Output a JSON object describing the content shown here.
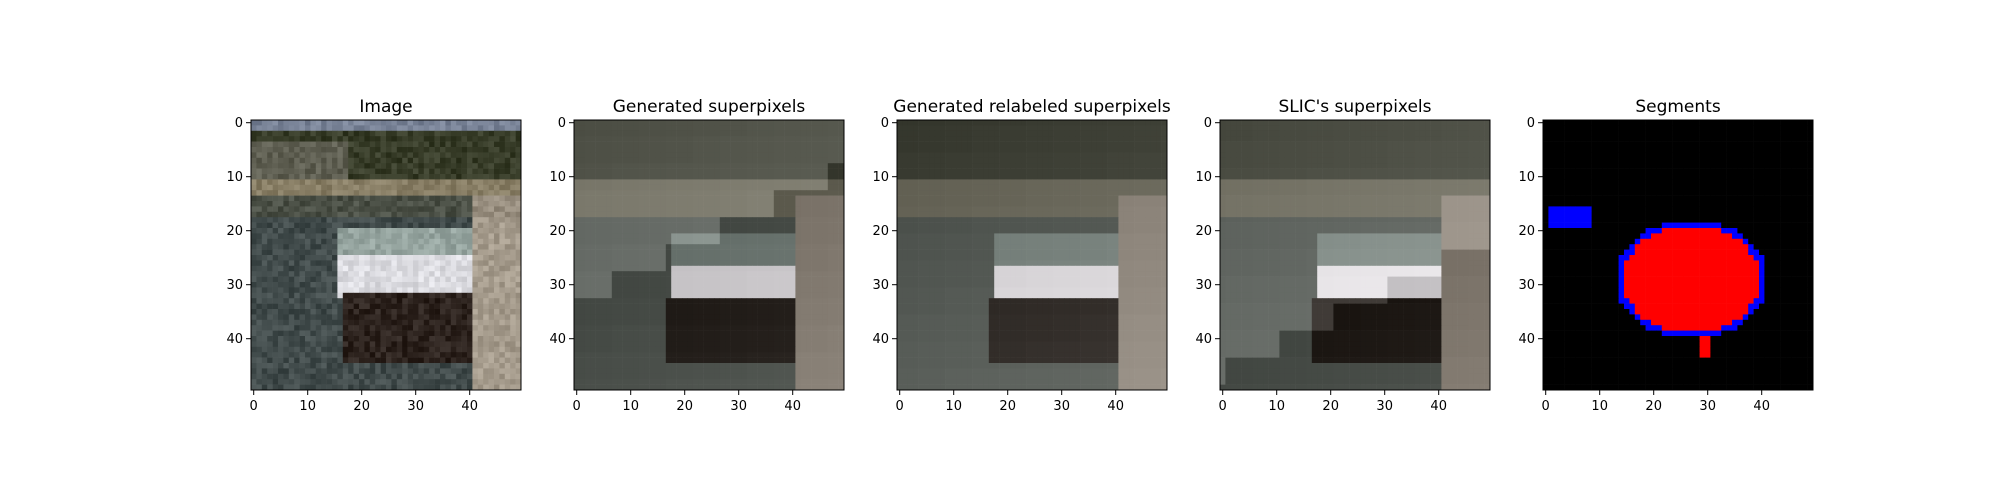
{
  "chart_data": [
    {
      "type": "heatmap",
      "title": "Image",
      "image_size": [
        50,
        50
      ],
      "xticks": [
        0,
        10,
        20,
        30,
        40
      ],
      "yticks": [
        0,
        10,
        20,
        30,
        40
      ],
      "xlim": [
        -0.5,
        49.5
      ],
      "ylim": [
        49.5,
        -0.5
      ]
    },
    {
      "type": "heatmap",
      "title": "Generated superpixels",
      "image_size": [
        50,
        50
      ],
      "xticks": [
        0,
        10,
        20,
        30,
        40
      ],
      "yticks": [
        0,
        10,
        20,
        30,
        40
      ],
      "xlim": [
        -0.5,
        49.5
      ],
      "ylim": [
        49.5,
        -0.5
      ]
    },
    {
      "type": "heatmap",
      "title": "Generated relabeled superpixels",
      "image_size": [
        50,
        50
      ],
      "xticks": [
        0,
        10,
        20,
        30,
        40
      ],
      "yticks": [
        0,
        10,
        20,
        30,
        40
      ],
      "xlim": [
        -0.5,
        49.5
      ],
      "ylim": [
        49.5,
        -0.5
      ]
    },
    {
      "type": "heatmap",
      "title": "SLIC's superpixels",
      "image_size": [
        50,
        50
      ],
      "xticks": [
        0,
        10,
        20,
        30,
        40
      ],
      "yticks": [
        0,
        10,
        20,
        30,
        40
      ],
      "xlim": [
        -0.5,
        49.5
      ],
      "ylim": [
        49.5,
        -0.5
      ]
    },
    {
      "type": "heatmap",
      "title": "Segments",
      "image_size": [
        50,
        50
      ],
      "xticks": [
        0,
        10,
        20,
        30,
        40
      ],
      "yticks": [
        0,
        10,
        20,
        30,
        40
      ],
      "xlim": [
        -0.5,
        49.5
      ],
      "ylim": [
        49.5,
        -0.5
      ],
      "colors": {
        "background": "#000000",
        "segment": "#ff0000",
        "boundary": "#0000ff"
      }
    }
  ]
}
